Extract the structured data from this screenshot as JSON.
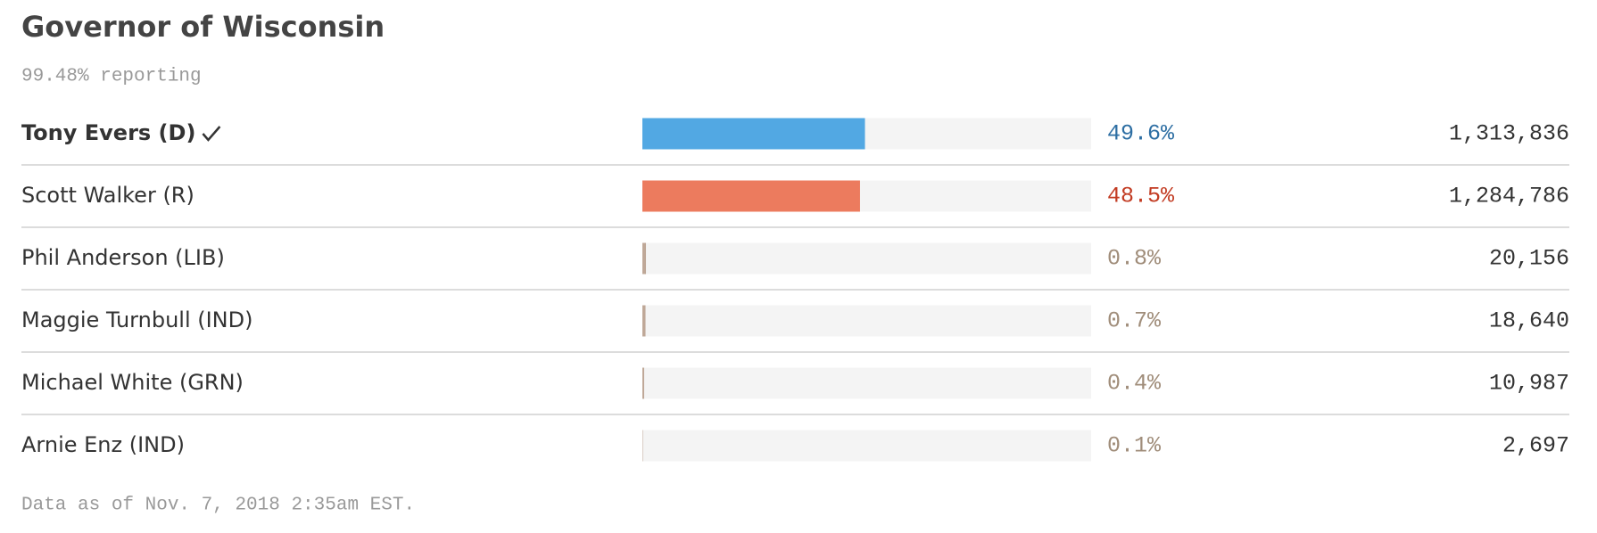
{
  "chart_data": {
    "type": "bar",
    "title": "Governor of Wisconsin",
    "subtitle": "99.48% reporting",
    "categories": [
      "Tony Evers (D)",
      "Scott Walker (R)",
      "Phil Anderson (LIB)",
      "Maggie Turnbull (IND)",
      "Michael White (GRN)",
      "Arnie Enz (IND)"
    ],
    "values": [
      49.6,
      48.5,
      0.8,
      0.7,
      0.4,
      0.1
    ],
    "value_labels": [
      "49.6%",
      "48.5%",
      "0.8%",
      "0.7%",
      "0.4%",
      "0.1%"
    ],
    "votes": [
      "1,313,836",
      "1,284,786",
      "20,156",
      "18,640",
      "10,987",
      "2,697"
    ],
    "colors": [
      "#52a8e3",
      "#ec7b5e",
      "#bfa898",
      "#bfa898",
      "#bfa898",
      "#bfa898"
    ],
    "label_colors": [
      "#2d6ea3",
      "#c23b22",
      "#a08d7a",
      "#a08d7a",
      "#a08d7a",
      "#a08d7a"
    ],
    "winner": 0,
    "xlim": [
      0,
      100
    ],
    "note": "Data as of Nov. 7, 2018 2:35am EST."
  }
}
